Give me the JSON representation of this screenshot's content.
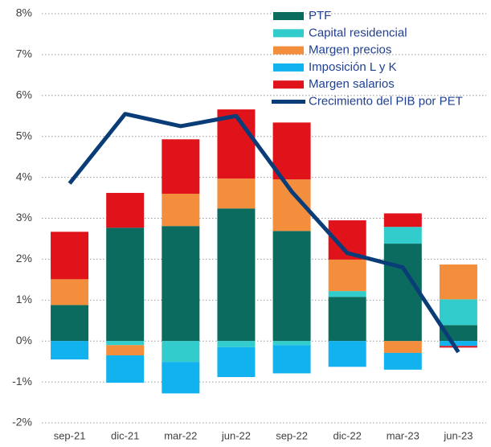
{
  "chart_data": {
    "type": "bar",
    "stacked": true,
    "categories": [
      "sep-21",
      "dic-21",
      "mar-22",
      "jun-22",
      "sep-22",
      "dic-22",
      "mar-23",
      "jun-23"
    ],
    "series": [
      {
        "name": "PTF",
        "type": "bar",
        "color": "#0b6b5e",
        "values": [
          0.88,
          2.77,
          2.81,
          3.24,
          2.69,
          1.08,
          2.38,
          0.39
        ]
      },
      {
        "name": "Capital residencial",
        "type": "bar",
        "color": "#33cccc",
        "values": [
          0,
          -0.1,
          -0.51,
          -0.15,
          -0.1,
          0.14,
          0.41,
          0.63
        ]
      },
      {
        "name": "Margen precios",
        "type": "bar",
        "color": "#f28e3c",
        "values": [
          0.63,
          -0.25,
          0.79,
          0.73,
          1.26,
          0.77,
          -0.29,
          0.85
        ]
      },
      {
        "name": "Imposición L y K",
        "type": "bar",
        "color": "#12b2ef",
        "values": [
          -0.45,
          -0.67,
          -0.77,
          -0.73,
          -0.69,
          -0.63,
          -0.41,
          -0.12
        ]
      },
      {
        "name": "Margen salarios",
        "type": "bar",
        "color": "#e0121a",
        "values": [
          1.16,
          0.85,
          1.33,
          1.69,
          1.39,
          0.96,
          0.33,
          -0.04
        ]
      },
      {
        "name": "Crecimiento del PIB por PET",
        "type": "line",
        "color": "#0a3d78",
        "values": [
          3.85,
          5.55,
          5.25,
          5.5,
          3.65,
          2.15,
          1.8,
          -0.27
        ]
      }
    ],
    "ylim": [
      -2,
      8
    ],
    "yticks": [
      {
        "value": -2,
        "label": "-2%"
      },
      {
        "value": -1,
        "label": "-1%"
      },
      {
        "value": 0,
        "label": "0%"
      },
      {
        "value": 1,
        "label": "1%"
      },
      {
        "value": 2,
        "label": "2%"
      },
      {
        "value": 3,
        "label": "3%"
      },
      {
        "value": 4,
        "label": "4%"
      },
      {
        "value": 5,
        "label": "5%"
      },
      {
        "value": 6,
        "label": "6%"
      },
      {
        "value": 7,
        "label": "7%"
      },
      {
        "value": 8,
        "label": "8%"
      }
    ],
    "grid": true
  }
}
